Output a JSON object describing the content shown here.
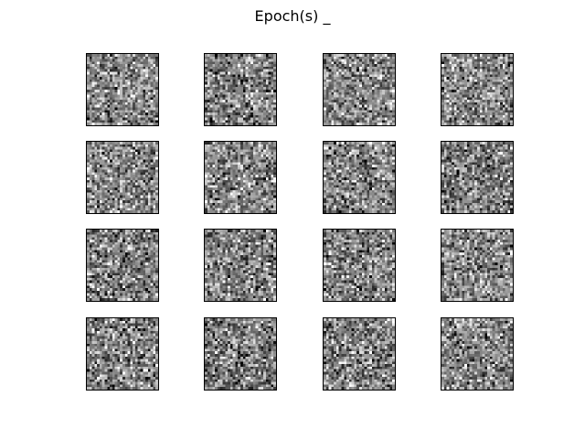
{
  "figure": {
    "title": "Epoch(s) _",
    "grid": {
      "rows": 4,
      "cols": 4
    },
    "image_resolution": 28,
    "colormap": "gray",
    "background": "#ffffff",
    "panel_border": "#000000"
  }
}
